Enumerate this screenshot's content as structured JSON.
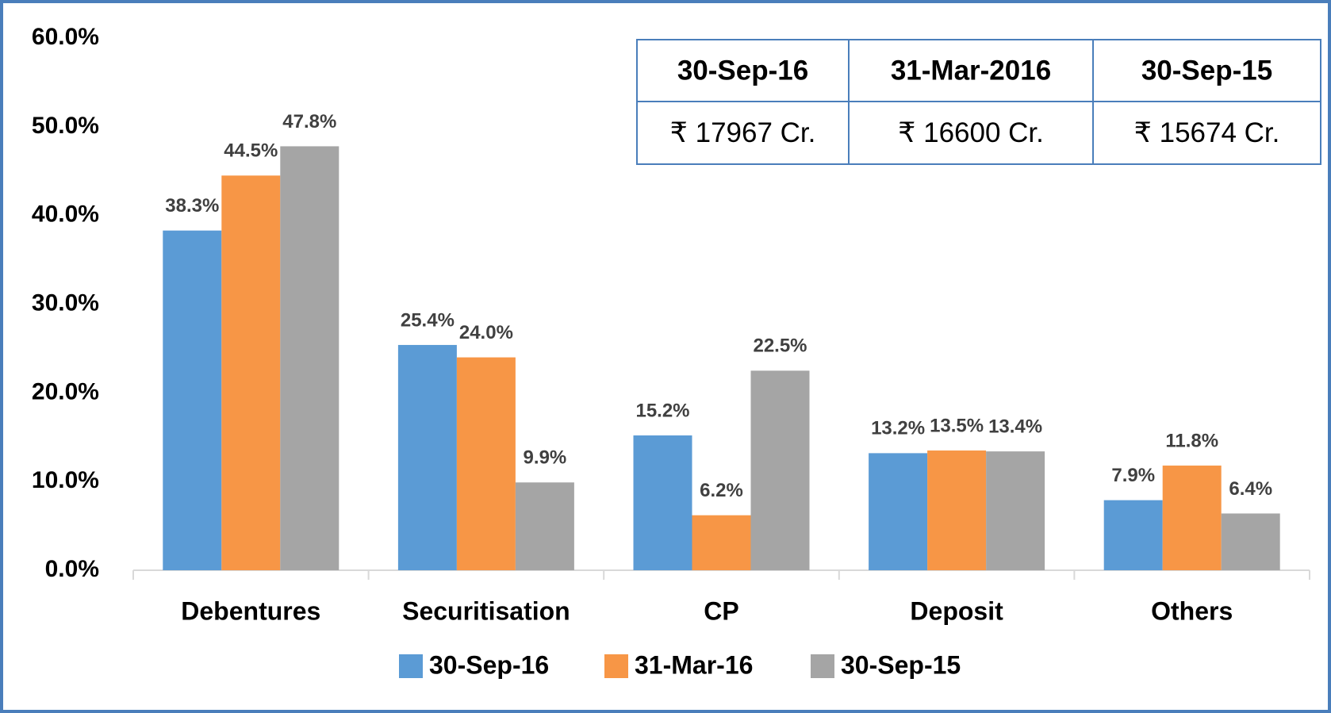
{
  "chart_data": {
    "type": "bar",
    "categories": [
      "Debentures",
      "Securitisation",
      "CP",
      "Deposit",
      "Others"
    ],
    "series": [
      {
        "name": "30-Sep-16",
        "color": "#5b9bd5",
        "values": [
          38.3,
          25.4,
          15.2,
          13.2,
          7.9
        ],
        "value_labels": [
          "38.3%",
          "25.4%",
          "15.2%",
          "13.2%",
          "7.9%"
        ]
      },
      {
        "name": "31-Mar-16",
        "color": "#f79646",
        "values": [
          44.5,
          24.0,
          6.2,
          13.5,
          11.8
        ],
        "value_labels": [
          "44.5%",
          "24.0%",
          "6.2%",
          "13.5%",
          "11.8%"
        ]
      },
      {
        "name": "30-Sep-15",
        "color": "#a5a5a5",
        "values": [
          47.8,
          9.9,
          22.5,
          13.4,
          6.4
        ],
        "value_labels": [
          "47.8%",
          "9.9%",
          "22.5%",
          "13.4%",
          "6.4%"
        ]
      }
    ],
    "ylim": [
      0,
      60
    ],
    "yticks": [
      {
        "value": 0,
        "label": "0.0%"
      },
      {
        "value": 10,
        "label": "10.0%"
      },
      {
        "value": 20,
        "label": "20.0%"
      },
      {
        "value": 30,
        "label": "30.0%"
      },
      {
        "value": 40,
        "label": "40.0%"
      },
      {
        "value": 50,
        "label": "50.0%"
      },
      {
        "value": 60,
        "label": "60.0%"
      }
    ],
    "grid": false,
    "legend": "bottom"
  },
  "table": {
    "header": [
      "30-Sep-16",
      "31-Mar-2016",
      "30-Sep-15"
    ],
    "rows": [
      [
        "₹ 17967 Cr.",
        "₹ 16600 Cr.",
        "₹ 15674 Cr."
      ]
    ]
  }
}
